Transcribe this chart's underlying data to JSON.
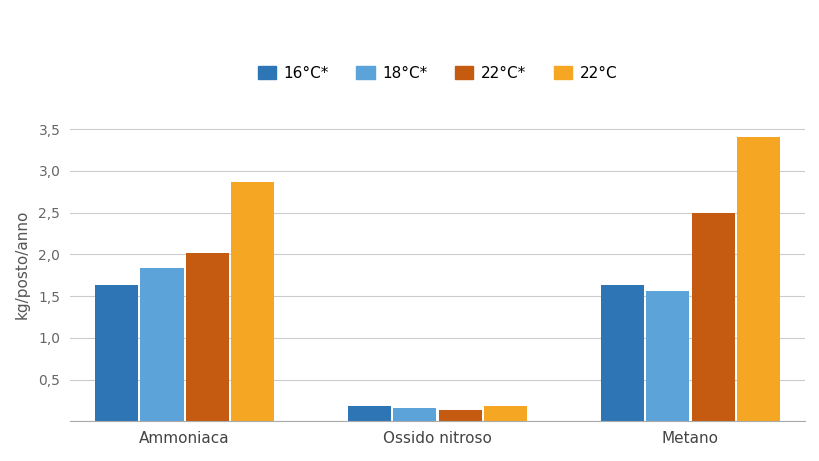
{
  "categories": [
    "Ammoniaca",
    "Ossido nitroso",
    "Metano"
  ],
  "series": [
    {
      "label": "16°C*",
      "color": "#2e75b6",
      "values": [
        1.63,
        0.18,
        1.63
      ]
    },
    {
      "label": "18°C*",
      "color": "#5ba3d9",
      "values": [
        1.83,
        0.16,
        1.56
      ]
    },
    {
      "label": "22°C*",
      "color": "#c55a11",
      "values": [
        2.02,
        0.14,
        2.5
      ]
    },
    {
      "label": "22°C",
      "color": "#f5a623",
      "values": [
        2.87,
        0.18,
        3.4
      ]
    }
  ],
  "ylabel": "kg/posto/anno",
  "ylim": [
    0,
    3.75
  ],
  "yticks": [
    0.0,
    0.5,
    1.0,
    1.5,
    2.0,
    2.5,
    3.0,
    3.5
  ],
  "ytick_labels": [
    "",
    "0,5",
    "1,0",
    "1,5",
    "2,0",
    "2,5",
    "3,0",
    "3,5"
  ],
  "background_color": "#ffffff",
  "grid_color": "#cccccc",
  "bar_width": 0.2,
  "group_positions": [
    0.38,
    1.55,
    2.72
  ]
}
